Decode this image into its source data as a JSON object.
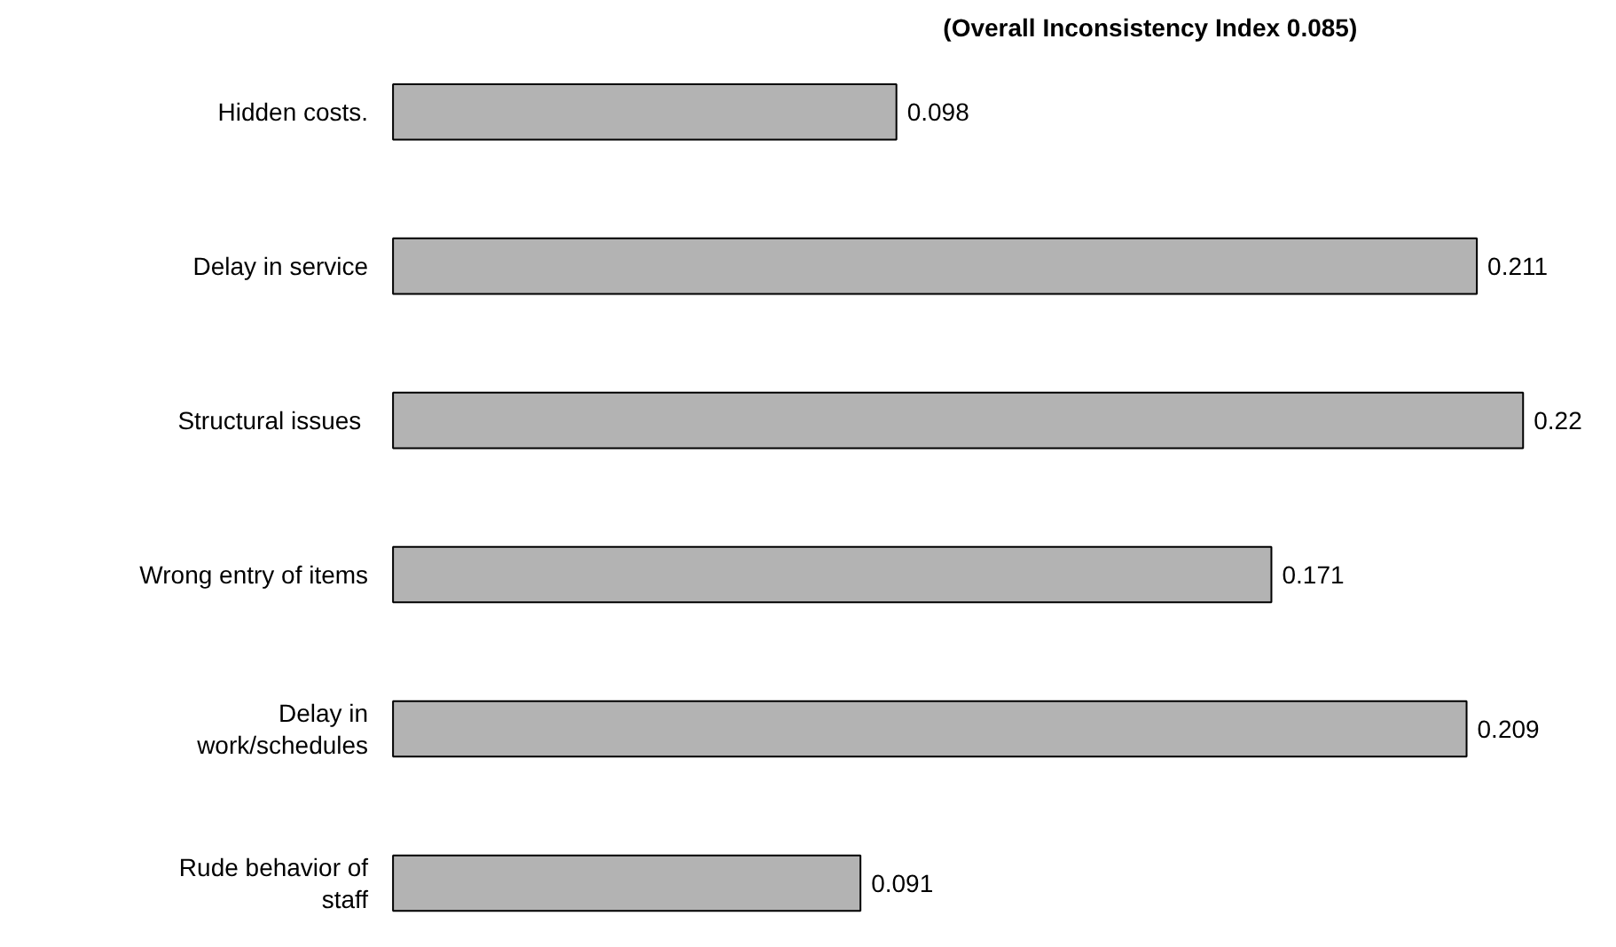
{
  "chart_data": {
    "type": "bar",
    "orientation": "horizontal",
    "title": "(Overall Inconsistency Index 0.085)",
    "categories": [
      "Hidden costs.",
      "Delay in service",
      "Structural  issues",
      "Wrong entry of items",
      "Delay in\nwork/schedules",
      "Rude behavior of\nstaff"
    ],
    "values": [
      0.098,
      0.211,
      0.22,
      0.171,
      0.209,
      0.091
    ],
    "color": "#b3b3b3",
    "data_labels": true,
    "grid": false
  }
}
